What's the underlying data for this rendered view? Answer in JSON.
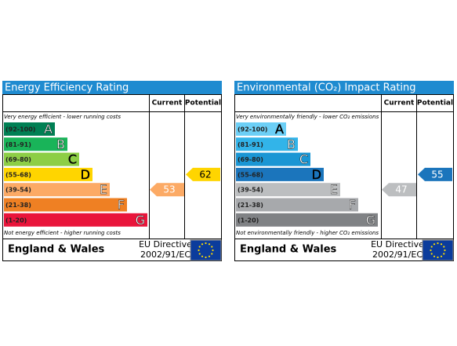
{
  "panels": [
    {
      "title": "Energy Efficiency Rating",
      "columns": [
        "Current",
        "Potential"
      ],
      "top_note": "Very energy efficient - lower running costs",
      "bands": [
        {
          "range": "(92-100)",
          "letter": "A"
        },
        {
          "range": "(81-91)",
          "letter": "B"
        },
        {
          "range": "(69-80)",
          "letter": "C"
        },
        {
          "range": "(55-68)",
          "letter": "D"
        },
        {
          "range": "(39-54)",
          "letter": "E"
        },
        {
          "range": "(21-38)",
          "letter": "F"
        },
        {
          "range": "(1-20)",
          "letter": "G"
        }
      ],
      "bottom_note": "Not energy efficient - higher running costs",
      "current": 53,
      "potential": 62,
      "footer": {
        "region": "England & Wales",
        "directive": [
          "EU Directive",
          "2002/91/EC"
        ]
      }
    },
    {
      "title": "Environmental (CO₂) Impact Rating",
      "columns": [
        "Current",
        "Potential"
      ],
      "top_note": "Very environmentally friendly - lower CO₂ emissions",
      "bands": [
        {
          "range": "(92-100)",
          "letter": "A"
        },
        {
          "range": "(81-91)",
          "letter": "B"
        },
        {
          "range": "(69-80)",
          "letter": "C"
        },
        {
          "range": "(55-68)",
          "letter": "D"
        },
        {
          "range": "(39-54)",
          "letter": "E"
        },
        {
          "range": "(21-38)",
          "letter": "F"
        },
        {
          "range": "(1-20)",
          "letter": "G"
        }
      ],
      "bottom_note": "Not environmentally friendly - higher CO₂ emissions",
      "current": 47,
      "potential": 55,
      "footer": {
        "region": "England & Wales",
        "directive": [
          "EU Directive",
          "2002/91/EC"
        ]
      }
    }
  ]
}
